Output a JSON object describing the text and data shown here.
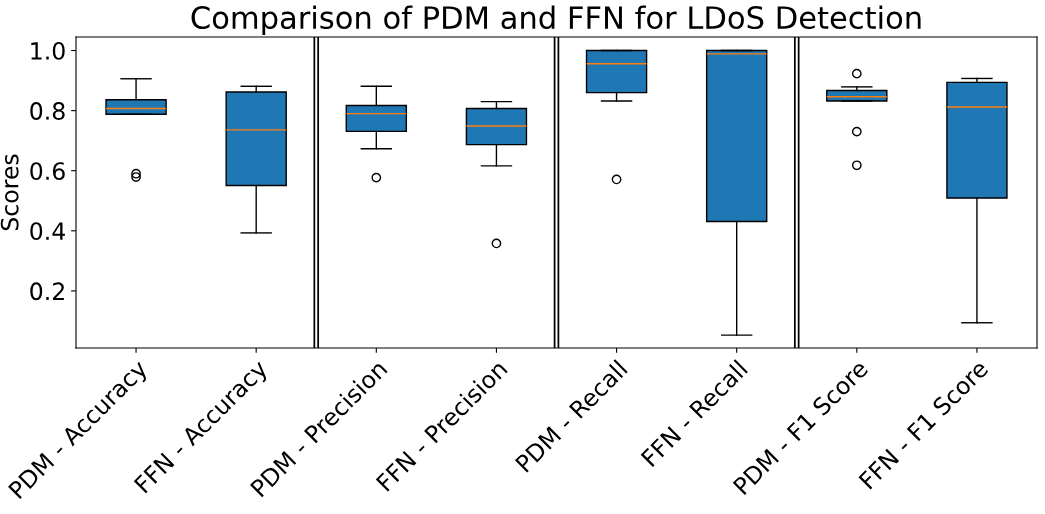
{
  "chart_data": {
    "type": "box",
    "title": "Comparison of PDM and FFN for LDoS Detection",
    "ylabel": "Scores",
    "categories": [
      "PDM - Accuracy",
      "FFN - Accuracy",
      "PDM - Precision",
      "FFN - Precision",
      "PDM - Recall",
      "FFN - Recall",
      "PDM - F1 Score",
      "FFN - F1 Score"
    ],
    "boxes": [
      {
        "low": 0.788,
        "q1": 0.788,
        "median": 0.807,
        "q3": 0.836,
        "high": 0.906,
        "outliers": [
          0.59,
          0.579
        ]
      },
      {
        "low": 0.393,
        "q1": 0.551,
        "median": 0.736,
        "q3": 0.862,
        "high": 0.881
      },
      {
        "low": 0.673,
        "q1": 0.731,
        "median": 0.79,
        "q3": 0.817,
        "high": 0.881,
        "outliers": [
          0.577
        ]
      },
      {
        "low": 0.616,
        "q1": 0.687,
        "median": 0.749,
        "q3": 0.807,
        "high": 0.83,
        "outliers": [
          0.358
        ]
      },
      {
        "low": 0.832,
        "q1": 0.86,
        "median": 0.956,
        "q3": 1.0,
        "high": 1.0,
        "outliers": [
          0.571
        ]
      },
      {
        "low": 0.053,
        "q1": 0.431,
        "median": 0.989,
        "q3": 1.0,
        "high": 1.0
      },
      {
        "low": 0.832,
        "q1": 0.832,
        "median": 0.846,
        "q3": 0.867,
        "high": 0.879,
        "outliers": [
          0.923,
          0.73,
          0.618
        ]
      },
      {
        "low": 0.094,
        "q1": 0.509,
        "median": 0.812,
        "q3": 0.894,
        "high": 0.907
      }
    ],
    "color": "#1f77b4",
    "ylim": [
      0.01,
      1.045
    ],
    "yticks": [
      0.2,
      0.4,
      0.6,
      0.8,
      {
        "value": 1.0,
        "label": "1.0"
      }
    ],
    "grid": false,
    "legend": false
  }
}
